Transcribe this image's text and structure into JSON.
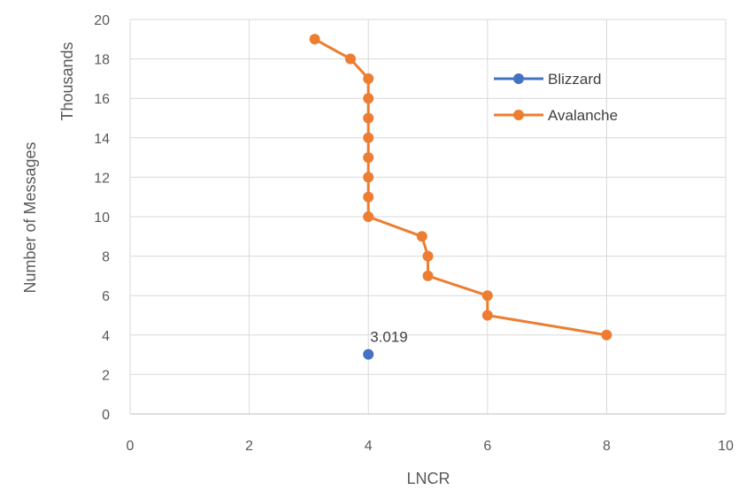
{
  "chart_data": {
    "type": "scatter",
    "xlabel": "LNCR",
    "ylabel": "Number of Messages",
    "yunit_label": "Thousands",
    "xlim": [
      0,
      10
    ],
    "ylim": [
      0,
      20
    ],
    "x_ticks": [
      0,
      2,
      4,
      6,
      8,
      10
    ],
    "y_ticks": [
      0,
      2,
      4,
      6,
      8,
      10,
      12,
      14,
      16,
      18,
      20
    ],
    "grid": true,
    "legend_position": "right",
    "series": [
      {
        "name": "Blizzard",
        "color": "#4472C4",
        "points": [
          {
            "x": 4,
            "y": 3.019
          }
        ],
        "data_labels": [
          "3.019"
        ]
      },
      {
        "name": "Avalanche",
        "color": "#ED7D31",
        "points": [
          {
            "x": 3.1,
            "y": 19
          },
          {
            "x": 3.7,
            "y": 18
          },
          {
            "x": 4,
            "y": 17
          },
          {
            "x": 4,
            "y": 16
          },
          {
            "x": 4,
            "y": 15
          },
          {
            "x": 4,
            "y": 14
          },
          {
            "x": 4,
            "y": 13
          },
          {
            "x": 4,
            "y": 12
          },
          {
            "x": 4,
            "y": 11
          },
          {
            "x": 4,
            "y": 10
          },
          {
            "x": 4.9,
            "y": 9
          },
          {
            "x": 5,
            "y": 8
          },
          {
            "x": 5,
            "y": 7
          },
          {
            "x": 6,
            "y": 6
          },
          {
            "x": 6,
            "y": 5
          },
          {
            "x": 8,
            "y": 4
          }
        ]
      }
    ]
  }
}
